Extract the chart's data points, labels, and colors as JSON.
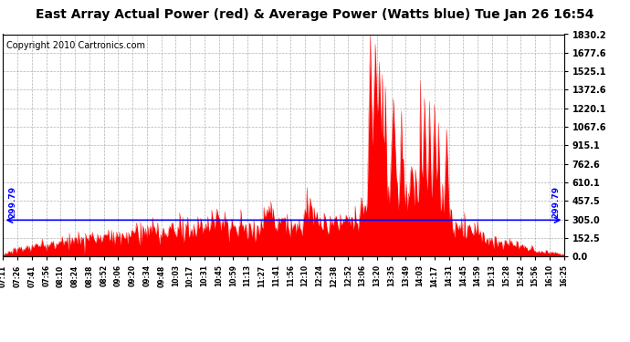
{
  "title": "East Array Actual Power (red) & Average Power (Watts blue) Tue Jan 26 16:54",
  "copyright": "Copyright 2010 Cartronics.com",
  "avg_power": 299.79,
  "y_max": 1830.2,
  "y_min": 0.0,
  "y_ticks": [
    0.0,
    152.5,
    305.0,
    457.5,
    610.1,
    762.6,
    915.1,
    1067.6,
    1220.1,
    1372.6,
    1525.1,
    1677.6,
    1830.2
  ],
  "y_tick_labels": [
    "0.0",
    "152.5",
    "305.0",
    "457.5",
    "610.1",
    "762.6",
    "915.1",
    "1067.6",
    "1220.1",
    "1372.6",
    "1525.1",
    "1677.6",
    "1830.2"
  ],
  "x_labels": [
    "07:11",
    "07:26",
    "07:41",
    "07:56",
    "08:10",
    "08:24",
    "08:38",
    "08:52",
    "09:06",
    "09:20",
    "09:34",
    "09:48",
    "10:03",
    "10:17",
    "10:31",
    "10:45",
    "10:59",
    "11:13",
    "11:27",
    "11:41",
    "11:56",
    "12:10",
    "12:24",
    "12:38",
    "12:52",
    "13:06",
    "13:20",
    "13:35",
    "13:49",
    "14:03",
    "14:17",
    "14:31",
    "14:45",
    "14:59",
    "15:13",
    "15:28",
    "15:42",
    "15:56",
    "16:10",
    "16:25"
  ],
  "bg_color": "#ffffff",
  "line_color": "#0000ff",
  "fill_color": "#ff0000",
  "title_fontsize": 10,
  "copyright_fontsize": 7,
  "spike_positions": [
    0.655,
    0.663,
    0.67,
    0.676,
    0.682,
    0.695,
    0.71,
    0.76,
    0.775,
    0.79
  ],
  "spike_heights": [
    1830,
    1750,
    1600,
    1500,
    1400,
    1300,
    1200,
    1280,
    1100,
    1050
  ]
}
